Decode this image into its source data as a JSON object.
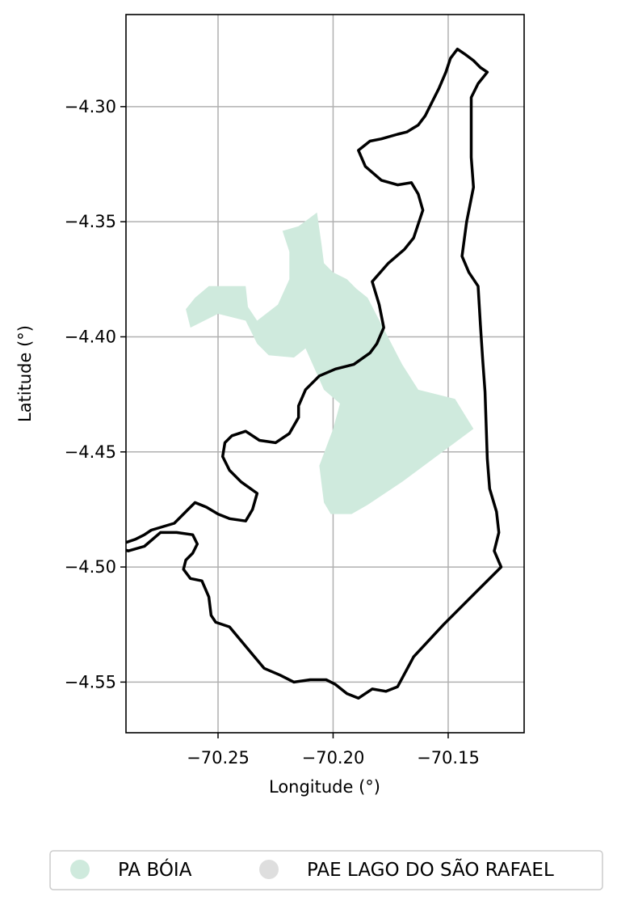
{
  "colors": {
    "pa_boia_fill": "#cfeadd",
    "pae_lago_outline": "#000000",
    "pae_lago_legend": "#dedede",
    "grid": "#b0b0b0"
  },
  "chart_data": {
    "type": "map",
    "xlabel": "Longitude (°)",
    "ylabel": "Latitude (°)",
    "xlim": [
      -70.29,
      -70.117
    ],
    "ylim": [
      -4.572,
      -4.26
    ],
    "x_ticks": [
      -70.25,
      -70.2,
      -70.15
    ],
    "x_tick_labels": [
      "−70.25",
      "−70.20",
      "−70.15"
    ],
    "y_ticks": [
      -4.3,
      -4.35,
      -4.4,
      -4.45,
      -4.5,
      -4.55
    ],
    "y_tick_labels": [
      "−4.30",
      "−4.35",
      "−4.40",
      "−4.45",
      "−4.50",
      "−4.55"
    ],
    "grid": true,
    "legend_position": "bottom, outside plot",
    "layers": [
      {
        "name": "PA BÓIA",
        "style": "filled polygon",
        "lonlat": [
          [
            -70.2,
            -4.372
          ],
          [
            -70.194,
            -4.375
          ],
          [
            -70.19,
            -4.379
          ],
          [
            -70.185,
            -4.383
          ],
          [
            -70.17,
            -4.412
          ],
          [
            -70.163,
            -4.423
          ],
          [
            -70.147,
            -4.427
          ],
          [
            -70.139,
            -4.44
          ],
          [
            -70.17,
            -4.463
          ],
          [
            -70.185,
            -4.473
          ],
          [
            -70.192,
            -4.477
          ],
          [
            -70.201,
            -4.477
          ],
          [
            -70.204,
            -4.472
          ],
          [
            -70.205,
            -4.464
          ],
          [
            -70.206,
            -4.456
          ],
          [
            -70.2,
            -4.44
          ],
          [
            -70.197,
            -4.429
          ],
          [
            -70.204,
            -4.423
          ],
          [
            -70.212,
            -4.405
          ],
          [
            -70.217,
            -4.409
          ],
          [
            -70.228,
            -4.408
          ],
          [
            -70.233,
            -4.403
          ],
          [
            -70.238,
            -4.393
          ],
          [
            -70.25,
            -4.39
          ],
          [
            -70.262,
            -4.396
          ],
          [
            -70.264,
            -4.388
          ],
          [
            -70.26,
            -4.383
          ],
          [
            -70.254,
            -4.378
          ],
          [
            -70.238,
            -4.378
          ],
          [
            -70.237,
            -4.387
          ],
          [
            -70.233,
            -4.393
          ],
          [
            -70.224,
            -4.386
          ],
          [
            -70.219,
            -4.375
          ],
          [
            -70.219,
            -4.363
          ],
          [
            -70.222,
            -4.354
          ],
          [
            -70.215,
            -4.352
          ],
          [
            -70.207,
            -4.346
          ],
          [
            -70.205,
            -4.36
          ],
          [
            -70.204,
            -4.368
          ]
        ]
      },
      {
        "name": "PAE LAGO DO SÃO RAFAEL",
        "style": "outline",
        "lonlat": [
          [
            -70.133,
            -4.285
          ],
          [
            -70.137,
            -4.29
          ],
          [
            -70.14,
            -4.296
          ],
          [
            -70.14,
            -4.31
          ],
          [
            -70.14,
            -4.322
          ],
          [
            -70.139,
            -4.335
          ],
          [
            -70.142,
            -4.35
          ],
          [
            -70.144,
            -4.365
          ],
          [
            -70.141,
            -4.372
          ],
          [
            -70.137,
            -4.378
          ],
          [
            -70.136,
            -4.395
          ],
          [
            -70.135,
            -4.41
          ],
          [
            -70.134,
            -4.424
          ],
          [
            -70.133,
            -4.453
          ],
          [
            -70.132,
            -4.466
          ],
          [
            -70.129,
            -4.476
          ],
          [
            -70.128,
            -4.485
          ],
          [
            -70.13,
            -4.493
          ],
          [
            -70.127,
            -4.5
          ],
          [
            -70.137,
            -4.51
          ],
          [
            -70.152,
            -4.525
          ],
          [
            -70.165,
            -4.539
          ],
          [
            -70.172,
            -4.552
          ],
          [
            -70.177,
            -4.554
          ],
          [
            -70.183,
            -4.553
          ],
          [
            -70.189,
            -4.557
          ],
          [
            -70.194,
            -4.555
          ],
          [
            -70.199,
            -4.551
          ],
          [
            -70.203,
            -4.549
          ],
          [
            -70.21,
            -4.549
          ],
          [
            -70.217,
            -4.55
          ],
          [
            -70.223,
            -4.547
          ],
          [
            -70.23,
            -4.544
          ],
          [
            -70.235,
            -4.538
          ],
          [
            -70.24,
            -4.532
          ],
          [
            -70.245,
            -4.526
          ],
          [
            -70.251,
            -4.524
          ],
          [
            -70.253,
            -4.521
          ],
          [
            -70.254,
            -4.513
          ],
          [
            -70.257,
            -4.506
          ],
          [
            -70.262,
            -4.505
          ],
          [
            -70.265,
            -4.501
          ],
          [
            -70.264,
            -4.497
          ],
          [
            -70.261,
            -4.494
          ],
          [
            -70.259,
            -4.49
          ],
          [
            -70.261,
            -4.486
          ],
          [
            -70.268,
            -4.485
          ],
          [
            -70.275,
            -4.485
          ],
          [
            -70.282,
            -4.491
          ],
          [
            -70.289,
            -4.493
          ],
          [
            -70.295,
            -4.491
          ],
          [
            -70.286,
            -4.488
          ],
          [
            -70.282,
            -4.486
          ],
          [
            -70.279,
            -4.484
          ],
          [
            -70.269,
            -4.481
          ],
          [
            -70.263,
            -4.475
          ],
          [
            -70.26,
            -4.472
          ],
          [
            -70.255,
            -4.474
          ],
          [
            -70.25,
            -4.477
          ],
          [
            -70.245,
            -4.479
          ],
          [
            -70.238,
            -4.48
          ],
          [
            -70.235,
            -4.475
          ],
          [
            -70.233,
            -4.468
          ],
          [
            -70.24,
            -4.463
          ],
          [
            -70.245,
            -4.458
          ],
          [
            -70.248,
            -4.452
          ],
          [
            -70.247,
            -4.446
          ],
          [
            -70.244,
            -4.443
          ],
          [
            -70.238,
            -4.441
          ],
          [
            -70.232,
            -4.445
          ],
          [
            -70.225,
            -4.446
          ],
          [
            -70.219,
            -4.442
          ],
          [
            -70.215,
            -4.435
          ],
          [
            -70.215,
            -4.43
          ],
          [
            -70.212,
            -4.423
          ],
          [
            -70.206,
            -4.417
          ],
          [
            -70.199,
            -4.414
          ],
          [
            -70.191,
            -4.412
          ],
          [
            -70.184,
            -4.407
          ],
          [
            -70.181,
            -4.403
          ],
          [
            -70.178,
            -4.396
          ],
          [
            -70.18,
            -4.386
          ],
          [
            -70.183,
            -4.376
          ],
          [
            -70.176,
            -4.368
          ],
          [
            -70.169,
            -4.362
          ],
          [
            -70.165,
            -4.357
          ],
          [
            -70.163,
            -4.351
          ],
          [
            -70.161,
            -4.345
          ],
          [
            -70.163,
            -4.338
          ],
          [
            -70.166,
            -4.333
          ],
          [
            -70.172,
            -4.334
          ],
          [
            -70.179,
            -4.332
          ],
          [
            -70.186,
            -4.326
          ],
          [
            -70.189,
            -4.319
          ],
          [
            -70.184,
            -4.315
          ],
          [
            -70.179,
            -4.314
          ],
          [
            -70.172,
            -4.312
          ],
          [
            -70.168,
            -4.311
          ],
          [
            -70.163,
            -4.308
          ],
          [
            -70.16,
            -4.304
          ],
          [
            -70.157,
            -4.298
          ],
          [
            -70.154,
            -4.292
          ],
          [
            -70.151,
            -4.285
          ],
          [
            -70.149,
            -4.279
          ],
          [
            -70.146,
            -4.275
          ],
          [
            -70.143,
            -4.277
          ],
          [
            -70.139,
            -4.28
          ],
          [
            -70.136,
            -4.283
          ],
          [
            -70.133,
            -4.285
          ]
        ]
      }
    ]
  },
  "legend": {
    "items": [
      {
        "label": "PA BÓIA",
        "color": "#cfeadd"
      },
      {
        "label": "PAE LAGO DO SÃO RAFAEL",
        "color": "#dedede"
      }
    ]
  }
}
